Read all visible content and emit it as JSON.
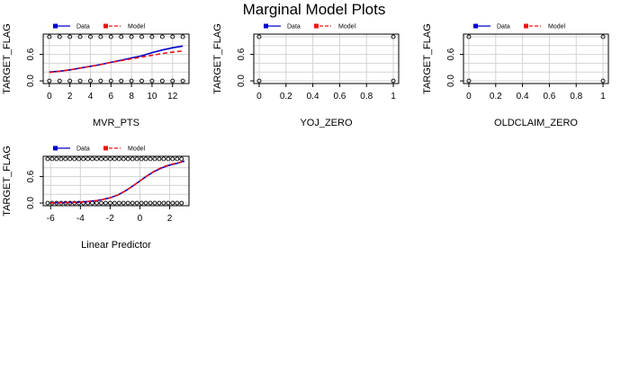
{
  "title": "Marginal Model Plots",
  "colors": {
    "data": "#0000cc",
    "model": "#ee1111",
    "grid": "#d3d3d3"
  },
  "chart_data": [
    {
      "type": "line",
      "xlabel": "MVR_PTS",
      "ylabel": "TARGET_FLAG",
      "xlim": [
        -0.6,
        13.6
      ],
      "ylim": [
        -0.06,
        1.06
      ],
      "xticks": [
        0,
        2,
        4,
        6,
        8,
        10,
        12
      ],
      "yticks": [
        0.0,
        0.6
      ],
      "legend": {
        "data": "Data",
        "model": "Model",
        "placement": "top"
      },
      "points_x": [
        0,
        1,
        2,
        3,
        4,
        5,
        6,
        7,
        8,
        9,
        10,
        11,
        12,
        13
      ],
      "series": [
        {
          "name": "Data",
          "x": [
            0,
            1,
            2,
            3,
            4,
            5,
            6,
            7,
            8,
            9,
            10,
            11,
            12,
            13
          ],
          "y": [
            0.2,
            0.22,
            0.25,
            0.29,
            0.33,
            0.37,
            0.42,
            0.47,
            0.52,
            0.57,
            0.64,
            0.7,
            0.75,
            0.79
          ]
        },
        {
          "name": "Model",
          "x": [
            0,
            1,
            2,
            3,
            4,
            5,
            6,
            7,
            8,
            9,
            10,
            11,
            12,
            13
          ],
          "y": [
            0.19,
            0.22,
            0.25,
            0.29,
            0.33,
            0.37,
            0.42,
            0.46,
            0.5,
            0.54,
            0.58,
            0.62,
            0.65,
            0.68
          ]
        }
      ]
    },
    {
      "type": "scatter",
      "xlabel": "YOJ_ZERO",
      "ylabel": "TARGET_FLAG",
      "xlim": [
        -0.04,
        1.04
      ],
      "ylim": [
        -0.06,
        1.06
      ],
      "xticks": [
        0.0,
        0.2,
        0.4,
        0.6,
        0.8,
        1.0
      ],
      "yticks": [
        0.0,
        0.6
      ],
      "legend": {
        "data": "Data",
        "model": "Model",
        "placement": "top"
      },
      "points_x": [
        0,
        1
      ],
      "series": []
    },
    {
      "type": "scatter",
      "xlabel": "OLDCLAIM_ZERO",
      "ylabel": "TARGET_FLAG",
      "xlim": [
        -0.04,
        1.04
      ],
      "ylim": [
        -0.06,
        1.06
      ],
      "xticks": [
        0.0,
        0.2,
        0.4,
        0.6,
        0.8,
        1.0
      ],
      "yticks": [
        0.0,
        0.6
      ],
      "legend": {
        "data": "Data",
        "model": "Model",
        "placement": "top"
      },
      "points_x": [
        0,
        1
      ],
      "series": []
    },
    {
      "type": "line",
      "xlabel": "Linear Predictor",
      "ylabel": "TARGET_FLAG",
      "xlim": [
        -6.5,
        3.3
      ],
      "ylim": [
        -0.06,
        1.06
      ],
      "xticks": [
        -6,
        -4,
        -2,
        0,
        2
      ],
      "yticks": [
        0.0,
        0.6
      ],
      "legend": {
        "data": "Data",
        "model": "Model",
        "placement": "top"
      },
      "points_x": [
        -6.2,
        -5.9,
        -5.6,
        -5.3,
        -5.0,
        -4.7,
        -4.4,
        -4.1,
        -3.8,
        -3.5,
        -3.2,
        -2.9,
        -2.6,
        -2.3,
        -2.0,
        -1.7,
        -1.4,
        -1.1,
        -0.8,
        -0.5,
        -0.2,
        0.1,
        0.4,
        0.7,
        1.0,
        1.3,
        1.6,
        1.9,
        2.2,
        2.5,
        2.8
      ],
      "series": [
        {
          "name": "Data",
          "x": [
            -6.0,
            -5.0,
            -4.0,
            -3.0,
            -2.5,
            -2.0,
            -1.5,
            -1.0,
            -0.5,
            0.0,
            0.5,
            1.0,
            1.5,
            2.0,
            2.5,
            3.0
          ],
          "y": [
            0.005,
            0.01,
            0.02,
            0.05,
            0.08,
            0.12,
            0.18,
            0.27,
            0.38,
            0.5,
            0.62,
            0.72,
            0.8,
            0.86,
            0.9,
            0.95
          ]
        },
        {
          "name": "Model",
          "x": [
            -6.0,
            -5.0,
            -4.0,
            -3.0,
            -2.5,
            -2.0,
            -1.5,
            -1.0,
            -0.5,
            0.0,
            0.5,
            1.0,
            1.5,
            2.0,
            2.5,
            3.0
          ],
          "y": [
            0.005,
            0.01,
            0.02,
            0.05,
            0.08,
            0.12,
            0.18,
            0.27,
            0.38,
            0.5,
            0.62,
            0.73,
            0.81,
            0.87,
            0.91,
            0.95
          ]
        }
      ]
    }
  ]
}
